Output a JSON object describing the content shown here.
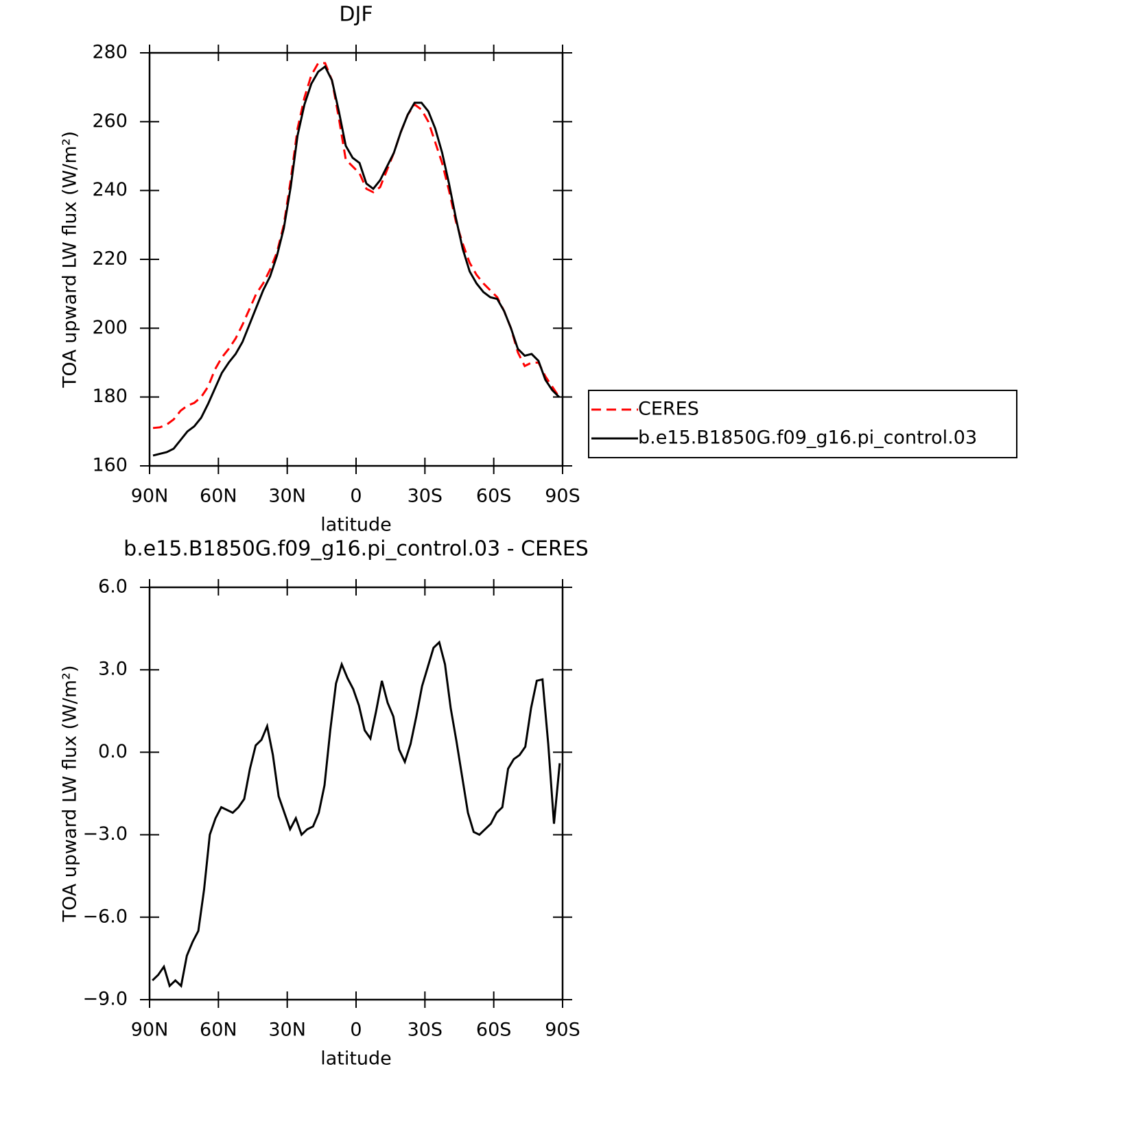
{
  "chart_data": [
    {
      "type": "line",
      "title": "DJF",
      "xlabel": "latitude",
      "ylabel": "TOA upward LW flux (W/m²)",
      "x": [
        88.5,
        85.5,
        82.5,
        79.5,
        76.5,
        73.5,
        70.5,
        67.5,
        64.5,
        61.5,
        58.5,
        55.5,
        52.5,
        49.5,
        46.5,
        43.5,
        40.5,
        37.5,
        34.5,
        31.5,
        28.5,
        25.5,
        22.5,
        19.5,
        16.5,
        13.5,
        10.5,
        7.5,
        4.5,
        1.5,
        -1.5,
        -4.5,
        -7.5,
        -10.5,
        -13.5,
        -16.5,
        -19.5,
        -22.5,
        -25.5,
        -28.5,
        -31.5,
        -34.5,
        -37.5,
        -40.5,
        -43.5,
        -46.5,
        -49.5,
        -52.5,
        -55.5,
        -58.5,
        -61.5,
        -64.5,
        -67.5,
        -70.5,
        -73.5,
        -76.5,
        -79.5,
        -82.5,
        -85.5,
        -88.5
      ],
      "series": [
        {
          "name": "CERES",
          "color": "#ff0000",
          "dash": true,
          "values": [
            171,
            171.2,
            172,
            173.5,
            176,
            177.5,
            178.3,
            180,
            183,
            188,
            191.5,
            194,
            197,
            201,
            205.5,
            210,
            213,
            217,
            222,
            230,
            243,
            258,
            267,
            273.5,
            277,
            277,
            272,
            261,
            249,
            247,
            245,
            240.5,
            239.5,
            241,
            246,
            251,
            257,
            262,
            265,
            263.5,
            260,
            254,
            248,
            240,
            231,
            224.5,
            219,
            215.5,
            213,
            211,
            209,
            205,
            200,
            193,
            189,
            190,
            190,
            186,
            183,
            180
          ]
        },
        {
          "name": "b.e15.B1850G.f09_g16.pi_control.03",
          "color": "#000000",
          "dash": false,
          "values": [
            163,
            163.5,
            164,
            165,
            167.5,
            170,
            171.5,
            174,
            178,
            182.5,
            187,
            190,
            192.5,
            196,
            201,
            206,
            211,
            215,
            221,
            229,
            241,
            256,
            265,
            271,
            274.5,
            276,
            272,
            263,
            253,
            249.5,
            248,
            242,
            240.5,
            243,
            247,
            251,
            257,
            262,
            265.5,
            265.5,
            263,
            258,
            251,
            242,
            232,
            223,
            216.5,
            213,
            210.5,
            209,
            208.5,
            205,
            200,
            194,
            192,
            192.5,
            190.5,
            185,
            182,
            180
          ]
        }
      ],
      "xlim": [
        90,
        -90
      ],
      "xticks": [
        {
          "value": 90,
          "label": "90N"
        },
        {
          "value": 60,
          "label": "60N"
        },
        {
          "value": 30,
          "label": "30N"
        },
        0,
        {
          "value": -30,
          "label": "30S"
        },
        {
          "value": -60,
          "label": "60S"
        },
        {
          "value": -90,
          "label": "90S"
        }
      ],
      "ylim": [
        160,
        280
      ],
      "yticks": [
        160,
        180,
        200,
        220,
        240,
        260,
        280
      ],
      "legend": "right"
    },
    {
      "type": "line",
      "title": "b.e15.B1850G.f09_g16.pi_control.03 - CERES",
      "xlabel": "latitude",
      "ylabel": "TOA upward LW flux (W/m²)",
      "x": [
        88.75,
        86.25,
        83.75,
        81.25,
        78.75,
        76.25,
        73.75,
        71.25,
        68.75,
        66.25,
        63.75,
        61.25,
        58.75,
        56.25,
        53.75,
        51.25,
        48.75,
        46.25,
        43.75,
        41.25,
        38.75,
        36.25,
        33.75,
        31.25,
        28.75,
        26.25,
        23.75,
        21.25,
        18.75,
        16.25,
        13.75,
        11.25,
        8.75,
        6.25,
        3.75,
        1.25,
        -1.25,
        -3.75,
        -6.25,
        -8.75,
        -11.25,
        -13.75,
        -16.25,
        -18.75,
        -21.25,
        -23.75,
        -26.25,
        -28.75,
        -31.25,
        -33.75,
        -36.25,
        -38.75,
        -41.25,
        -43.75,
        -46.25,
        -48.75,
        -51.25,
        -53.75,
        -56.25,
        -58.75,
        -61.25,
        -63.75,
        -66.25,
        -68.75,
        -71.25,
        -73.75,
        -76.25,
        -78.75,
        -81.25,
        -83.75,
        -86.25,
        -88.75
      ],
      "series": [
        {
          "name": "b.e15.B1850G.f09_g16.pi_control.03 - CERES",
          "color": "#000000",
          "dash": false,
          "values": [
            -8.3,
            -8.1,
            -7.8,
            -8.5,
            -8.3,
            -8.5,
            -7.4,
            -6.9,
            -6.5,
            -5.0,
            -3.0,
            -2.4,
            -2.0,
            -2.1,
            -2.2,
            -2.0,
            -1.7,
            -0.6,
            0.25,
            0.45,
            0.95,
            -0.1,
            -1.6,
            -2.2,
            -2.8,
            -2.4,
            -3.0,
            -2.8,
            -2.7,
            -2.2,
            -1.2,
            0.8,
            2.5,
            3.2,
            2.7,
            2.3,
            1.7,
            0.8,
            0.5,
            1.5,
            2.6,
            1.8,
            1.3,
            0.1,
            -0.35,
            0.3,
            1.3,
            2.4,
            3.1,
            3.8,
            4.0,
            3.2,
            1.6,
            0.4,
            -0.9,
            -2.2,
            -2.9,
            -3.0,
            -2.8,
            -2.6,
            -2.2,
            -2.0,
            -0.6,
            -0.25,
            -0.1,
            0.2,
            1.6,
            2.6,
            2.65,
            0.3,
            -2.6,
            -0.4
          ]
        }
      ],
      "xlim": [
        90,
        -90
      ],
      "xticks": [
        {
          "value": 90,
          "label": "90N"
        },
        {
          "value": 60,
          "label": "60N"
        },
        {
          "value": 30,
          "label": "30N"
        },
        0,
        {
          "value": -30,
          "label": "30S"
        },
        {
          "value": -60,
          "label": "60S"
        },
        {
          "value": -90,
          "label": "90S"
        }
      ],
      "ylim": [
        -9,
        6
      ],
      "yticks": [
        {
          "value": -9,
          "label": "−9.0"
        },
        {
          "value": -6,
          "label": "−6.0"
        },
        {
          "value": -3,
          "label": "−3.0"
        },
        {
          "value": 0,
          "label": "0.0"
        },
        {
          "value": 3,
          "label": "3.0"
        },
        {
          "value": 6,
          "label": "6.0"
        }
      ]
    }
  ]
}
